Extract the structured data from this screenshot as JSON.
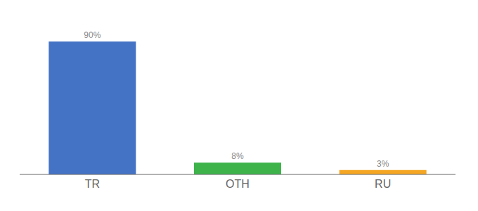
{
  "chart_data": {
    "type": "bar",
    "categories": [
      "TR",
      "OTH",
      "RU"
    ],
    "values": [
      90,
      8,
      3
    ],
    "value_labels": [
      "90%",
      "8%",
      "3%"
    ],
    "data_labels": true,
    "colors": [
      "#4472c4",
      "#3db34a",
      "#f5a623"
    ],
    "ylim": [
      0,
      100
    ],
    "tick_labels": "x",
    "grid": false
  }
}
